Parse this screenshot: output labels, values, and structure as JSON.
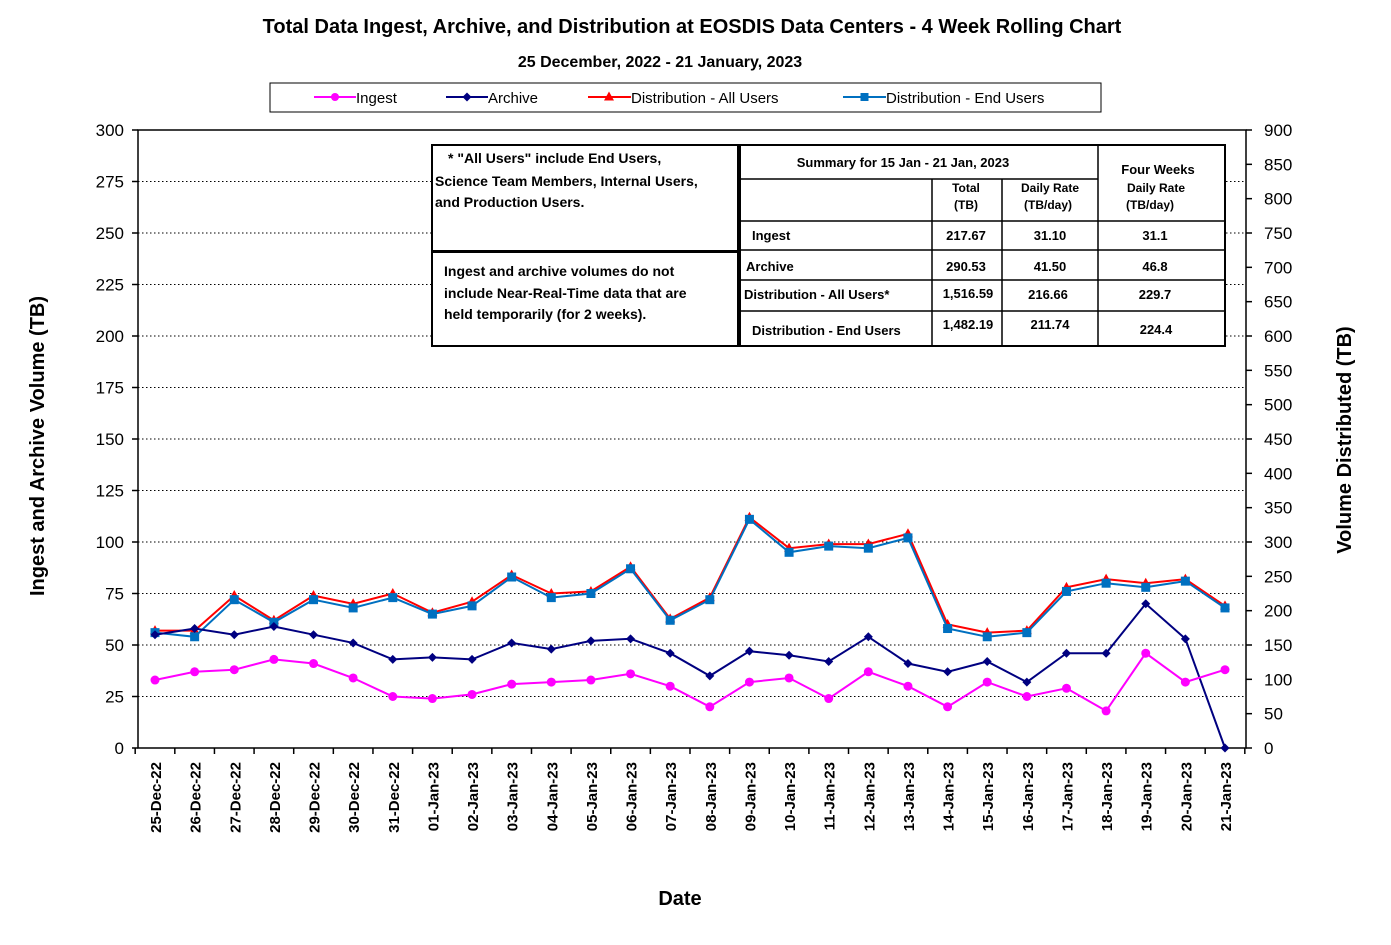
{
  "chart_data": {
    "type": "line",
    "title": "Total Data Ingest, Archive, and  Distribution at EOSDIS Data Centers - 4 Week Rolling Chart",
    "subtitle": "25  December,  2022  -  21  January, 2023",
    "xlabel": "Date",
    "ylabel_left": "Ingest and Archive Volume (TB)",
    "ylabel_right": "Volume Distributed (TB)",
    "ylim_left": [
      0,
      300
    ],
    "ylim_right": [
      0,
      900
    ],
    "yticks_left": [
      "0",
      "25",
      "50",
      "75",
      "100",
      "125",
      "150",
      "175",
      "200",
      "225",
      "250",
      "275",
      "300"
    ],
    "yticks_right": [
      "0",
      "50",
      "100",
      "150",
      "200",
      "250",
      "300",
      "350",
      "400",
      "450",
      "500",
      "550",
      "600",
      "650",
      "700",
      "750",
      "800",
      "850",
      "900"
    ],
    "grid": "horizontal dotted",
    "legend_position": "top",
    "categories": [
      "25-Dec-22",
      "26-Dec-22",
      "27-Dec-22",
      "28-Dec-22",
      "29-Dec-22",
      "30-Dec-22",
      "31-Dec-22",
      "01-Jan-23",
      "02-Jan-23",
      "03-Jan-23",
      "04-Jan-23",
      "05-Jan-23",
      "06-Jan-23",
      "07-Jan-23",
      "08-Jan-23",
      "09-Jan-23",
      "10-Jan-23",
      "11-Jan-23",
      "12-Jan-23",
      "13-Jan-23",
      "14-Jan-23",
      "15-Jan-23",
      "16-Jan-23",
      "17-Jan-23",
      "18-Jan-23",
      "19-Jan-23",
      "20-Jan-23",
      "21-Jan-23"
    ],
    "series": [
      {
        "name": "Ingest",
        "axis": "left",
        "color": "#ff00ff",
        "marker": "circle",
        "values": [
          33,
          37,
          38,
          43,
          41,
          34,
          25,
          24,
          26,
          31,
          32,
          33,
          36,
          30,
          20,
          32,
          34,
          24,
          37,
          30,
          20,
          32,
          25,
          29,
          18,
          46,
          32,
          38
        ]
      },
      {
        "name": "Archive",
        "axis": "left",
        "color": "#000080",
        "marker": "diamond",
        "values": [
          55,
          58,
          55,
          59,
          55,
          51,
          43,
          44,
          43,
          51,
          48,
          52,
          53,
          46,
          35,
          47,
          45,
          42,
          54,
          41,
          37,
          42,
          32,
          46,
          46,
          70,
          53,
          0
        ]
      },
      {
        "name": "Distribution - All Users",
        "axis": "right",
        "color": "#ff0000",
        "marker": "triangle",
        "values": [
          171,
          171,
          222,
          186,
          222,
          210,
          225,
          197,
          213,
          252,
          225,
          228,
          264,
          188,
          219,
          336,
          291,
          297,
          297,
          312,
          180,
          168,
          171,
          234,
          246,
          240,
          246,
          207
        ]
      },
      {
        "name": "Distribution - End Users",
        "axis": "right",
        "color": "#0070c0",
        "marker": "square",
        "values": [
          168,
          162,
          216,
          183,
          216,
          204,
          219,
          195,
          207,
          249,
          219,
          225,
          261,
          186,
          216,
          333,
          285,
          294,
          291,
          306,
          174,
          162,
          168,
          228,
          240,
          234,
          243,
          204
        ]
      }
    ]
  },
  "notes": {
    "all_users_lines": [
      "* \"All Users\" include End Users,",
      "Science Team Members,  Internal Users,",
      "and Production Users."
    ],
    "nrt_lines": [
      "Ingest and archive volumes do not",
      "include Near-Real-Time data that are",
      "held temporarily (for 2 weeks)."
    ]
  },
  "summary": {
    "header": "Summary  for  15 Jan  -  21 Jan, 2023",
    "four_weeks": "Four Weeks",
    "col_total": [
      "Total",
      "(TB)"
    ],
    "col_daily": [
      "Daily Rate",
      "(TB/day)"
    ],
    "col_fw": [
      "Daily Rate",
      "(TB/day)"
    ],
    "rows": [
      {
        "label": "Ingest",
        "total": "217.67",
        "daily": "31.10",
        "fw": "31.1"
      },
      {
        "label": "Archive",
        "total": "290.53",
        "daily": "41.50",
        "fw": "46.8"
      },
      {
        "label": "Distribution - All Users*",
        "total": "1,516.59",
        "daily": "216.66",
        "fw": "229.7"
      },
      {
        "label": "Distribution - End Users",
        "total": "1,482.19",
        "daily": "211.74",
        "fw": "224.4"
      }
    ]
  }
}
